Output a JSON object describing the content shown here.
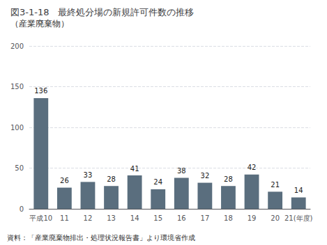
{
  "chart_data": {
    "type": "bar",
    "title": "図3-1-18　最終処分場の新規許可件数の推移",
    "subtitle": "（産業廃棄物）",
    "categories": [
      "平成10",
      "11",
      "12",
      "13",
      "14",
      "15",
      "16",
      "17",
      "18",
      "19",
      "20",
      "21(年度)"
    ],
    "values": [
      136,
      26,
      33,
      28,
      41,
      24,
      38,
      32,
      28,
      42,
      21,
      14
    ],
    "color": "#5a6e7e",
    "ylim": [
      0,
      200
    ],
    "yticks": [
      0,
      50,
      100,
      150,
      200
    ],
    "grid": true,
    "data_labels": true,
    "annotations": [
      "資料：「産業廃棄物排出・処理状況報告書」より環境省作成"
    ]
  }
}
